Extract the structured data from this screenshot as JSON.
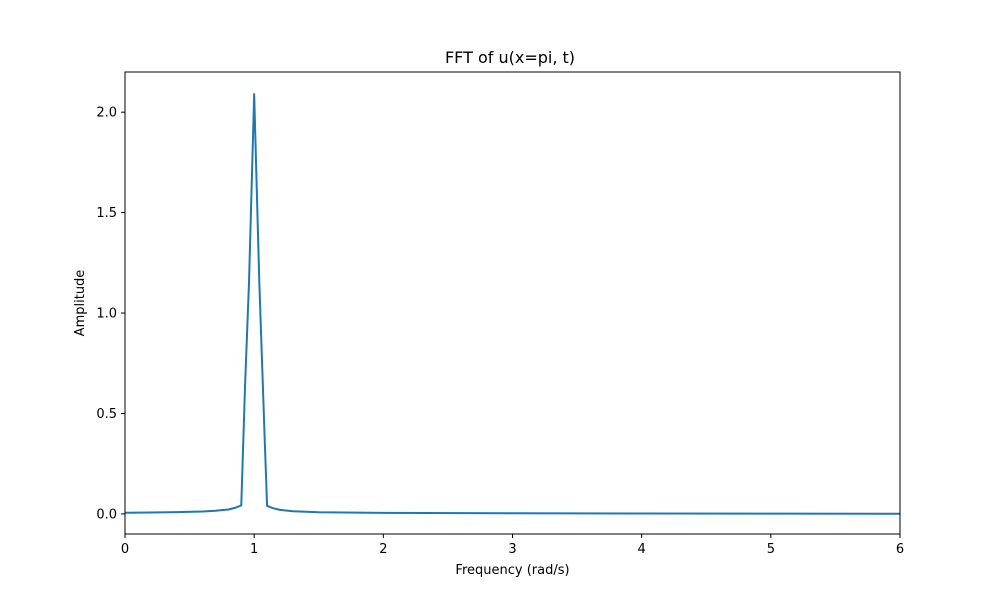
{
  "chart_data": {
    "type": "line",
    "title": "FFT of u(x=pi, t)",
    "xlabel": "Frequency (rad/s)",
    "ylabel": "Amplitude",
    "xlim": [
      0,
      6
    ],
    "ylim": [
      -0.1,
      2.2
    ],
    "xticks": [
      0,
      1,
      2,
      3,
      4,
      5,
      6
    ],
    "xtick_labels": [
      "0",
      "1",
      "2",
      "3",
      "4",
      "5",
      "6"
    ],
    "yticks": [
      0.0,
      0.5,
      1.0,
      1.5,
      2.0
    ],
    "ytick_labels": [
      "0.0",
      "0.5",
      "1.0",
      "1.5",
      "2.0"
    ],
    "grid": false,
    "legend": "none",
    "series": [
      {
        "color": "#1f77b4",
        "x": [
          0,
          0.2,
          0.4,
          0.6,
          0.7,
          0.8,
          0.85,
          0.9,
          0.93,
          0.96,
          1.0,
          1.04,
          1.08,
          1.1,
          1.15,
          1.2,
          1.3,
          1.5,
          2.0,
          3.0,
          4.0,
          5.0,
          6.0
        ],
        "y": [
          0.006,
          0.007,
          0.009,
          0.012,
          0.016,
          0.022,
          0.03,
          0.042,
          0.65,
          1.15,
          2.09,
          1.15,
          0.4,
          0.04,
          0.028,
          0.02,
          0.013,
          0.008,
          0.005,
          0.003,
          0.002,
          0.0015,
          0.001
        ]
      }
    ]
  }
}
